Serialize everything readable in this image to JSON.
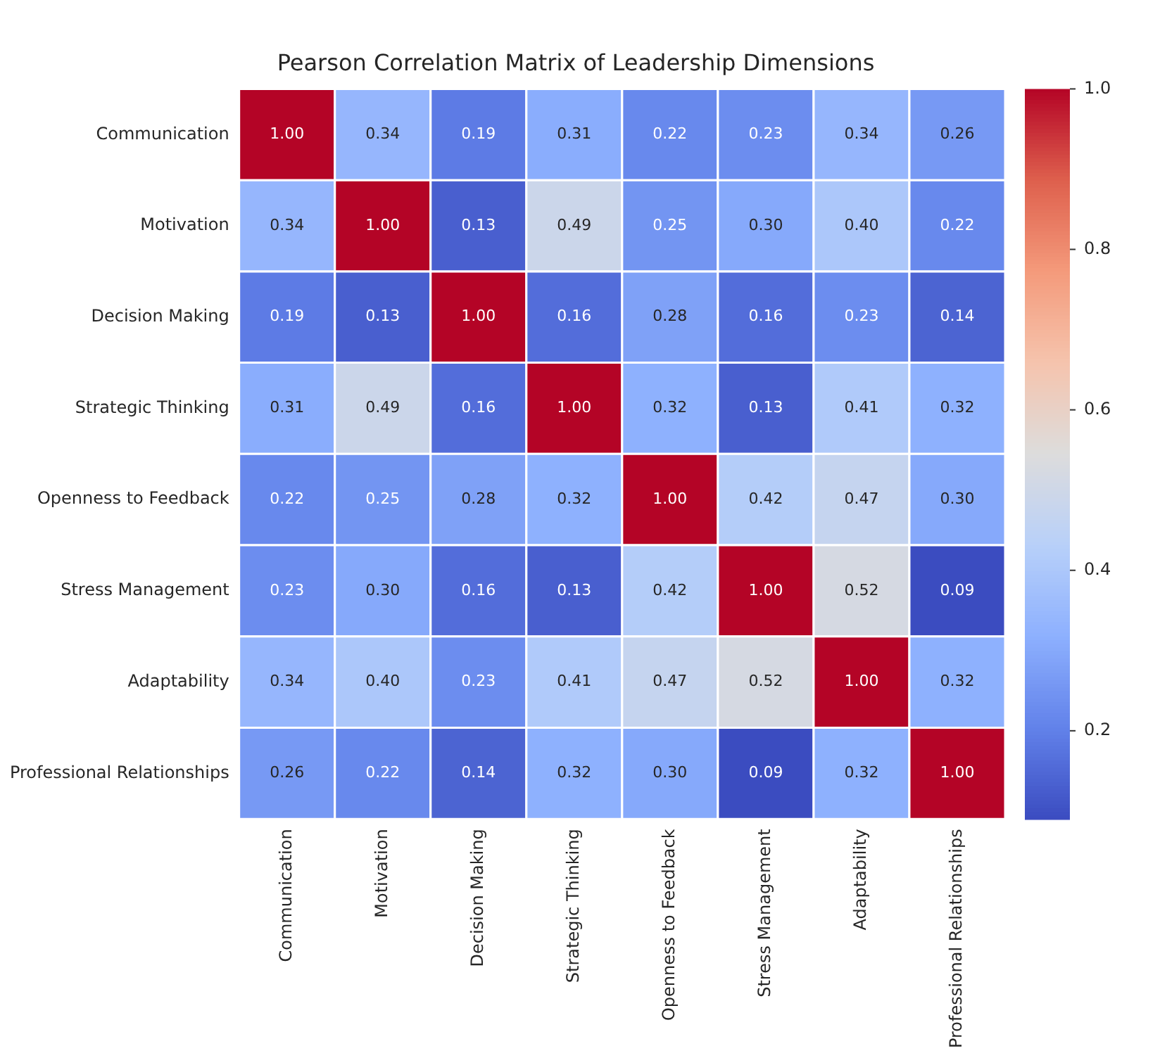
{
  "chart_data": {
    "type": "heatmap",
    "title": "Pearson Correlation Matrix of Leadership Dimensions",
    "categories": [
      "Communication",
      "Motivation",
      "Decision Making",
      "Strategic Thinking",
      "Openness to Feedback",
      "Stress Management",
      "Adaptability",
      "Professional Relationships"
    ],
    "y_categories": [
      "Communication",
      "Motivation",
      "Decision Making",
      "Strategic Thinking",
      "Openness to Feedback",
      "Stress Management",
      "Adaptability",
      "Professional Relationships"
    ],
    "cells": [
      [
        1.0,
        0.34,
        0.19,
        0.31,
        0.22,
        0.23,
        0.34,
        0.26
      ],
      [
        0.34,
        1.0,
        0.13,
        0.49,
        0.25,
        0.3,
        0.4,
        0.22
      ],
      [
        0.19,
        0.13,
        1.0,
        0.16,
        0.28,
        0.16,
        0.23,
        0.14
      ],
      [
        0.31,
        0.49,
        0.16,
        1.0,
        0.32,
        0.13,
        0.41,
        0.32
      ],
      [
        0.22,
        0.25,
        0.28,
        0.32,
        1.0,
        0.42,
        0.47,
        0.3
      ],
      [
        0.23,
        0.3,
        0.16,
        0.13,
        0.42,
        1.0,
        0.52,
        0.09
      ],
      [
        0.34,
        0.4,
        0.23,
        0.41,
        0.47,
        0.52,
        1.0,
        0.32
      ],
      [
        0.26,
        0.22,
        0.14,
        0.32,
        0.3,
        0.09,
        0.32,
        1.0
      ]
    ],
    "cell_labels": [
      [
        "1.00",
        "0.34",
        "0.19",
        "0.31",
        "0.22",
        "0.23",
        "0.34",
        "0.26"
      ],
      [
        "0.34",
        "1.00",
        "0.13",
        "0.49",
        "0.25",
        "0.30",
        "0.40",
        "0.22"
      ],
      [
        "0.19",
        "0.13",
        "1.00",
        "0.16",
        "0.28",
        "0.16",
        "0.23",
        "0.14"
      ],
      [
        "0.31",
        "0.49",
        "0.16",
        "1.00",
        "0.32",
        "0.13",
        "0.41",
        "0.32"
      ],
      [
        "0.22",
        "0.25",
        "0.28",
        "0.32",
        "1.00",
        "0.42",
        "0.47",
        "0.30"
      ],
      [
        "0.23",
        "0.30",
        "0.16",
        "0.13",
        "0.42",
        "1.00",
        "0.52",
        "0.09"
      ],
      [
        "0.34",
        "0.40",
        "0.23",
        "0.41",
        "0.47",
        "0.52",
        "1.00",
        "0.32"
      ],
      [
        "0.26",
        "0.22",
        "0.14",
        "0.32",
        "0.30",
        "0.09",
        "0.32",
        "1.00"
      ]
    ],
    "clim": [
      0.09,
      1.0
    ],
    "cticks": [
      0.2,
      0.4,
      0.6,
      0.8,
      {
        "value": 1.0,
        "label": "1.0"
      }
    ]
  }
}
